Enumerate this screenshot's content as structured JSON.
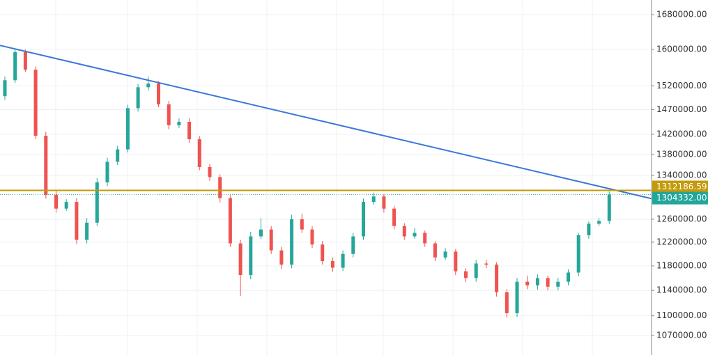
{
  "chart_data": {
    "type": "candlestick",
    "log_scale": true,
    "grid": true,
    "ylim": [
      1041000,
      1715000
    ],
    "yticks": [
      {
        "value": 1680000,
        "label": "1680000.00"
      },
      {
        "value": 1600000,
        "label": "1600000.00"
      },
      {
        "value": 1520000,
        "label": "1520000.00"
      },
      {
        "value": 1470000,
        "label": "1470000.00"
      },
      {
        "value": 1420000,
        "label": "1420000.00"
      },
      {
        "value": 1380000,
        "label": "1380000.00"
      },
      {
        "value": 1340000,
        "label": "1340000.00"
      },
      {
        "value": 1260000,
        "label": "1260000.00"
      },
      {
        "value": 1220000,
        "label": "1220000.00"
      },
      {
        "value": 1180000,
        "label": "1180000.00"
      },
      {
        "value": 1140000,
        "label": "1140000.00"
      },
      {
        "value": 1100000,
        "label": "1100000.00"
      },
      {
        "value": 1070000,
        "label": "1070000.00"
      }
    ],
    "up_color": "#26a69a",
    "down_color": "#ef5350",
    "open": [
      1498000,
      1532000,
      1594000,
      1555000,
      1417000,
      1304000,
      1279000,
      1291000,
      1224000,
      1254000,
      1327000,
      1366000,
      1390000,
      1473000,
      1517000,
      1525000,
      1481000,
      1438000,
      1445000,
      1410000,
      1356000,
      1337000,
      1298000,
      1218000,
      1165000,
      1230000,
      1242000,
      1206000,
      1182000,
      1260000,
      1242000,
      1216000,
      1188000,
      1177000,
      1200000,
      1230000,
      1291000,
      1301000,
      1279000,
      1248000,
      1230000,
      1236000,
      1218000,
      1194000,
      1204000,
      1171000,
      1160000,
      1184000,
      1182000,
      1137000,
      1104000,
      1154000,
      1148000,
      1160000,
      1146000,
      1154000,
      1169000,
      1232000,
      1252000,
      1257000
    ],
    "high": [
      1540000,
      1602000,
      1600000,
      1562000,
      1425000,
      1312000,
      1296000,
      1298000,
      1262000,
      1335000,
      1374000,
      1397000,
      1480000,
      1524000,
      1540000,
      1530000,
      1488000,
      1452000,
      1452000,
      1416000,
      1362000,
      1342000,
      1303000,
      1224000,
      1238000,
      1262000,
      1248000,
      1212000,
      1268000,
      1270000,
      1248000,
      1222000,
      1194000,
      1206000,
      1236000,
      1297000,
      1308000,
      1305000,
      1284000,
      1253000,
      1244000,
      1240000,
      1222000,
      1210000,
      1208000,
      1176000,
      1190000,
      1190000,
      1186000,
      1142000,
      1160000,
      1164000,
      1166000,
      1164000,
      1160000,
      1174000,
      1236000,
      1256000,
      1262000,
      1310000
    ],
    "low": [
      1490000,
      1526000,
      1550000,
      1410000,
      1297000,
      1272000,
      1275000,
      1217000,
      1218000,
      1248000,
      1320000,
      1360000,
      1384000,
      1466000,
      1510000,
      1475000,
      1430000,
      1432000,
      1403000,
      1350000,
      1330000,
      1290000,
      1212000,
      1131000,
      1158000,
      1225000,
      1200000,
      1175000,
      1176000,
      1236000,
      1210000,
      1182000,
      1170000,
      1172000,
      1194000,
      1224000,
      1286000,
      1272000,
      1242000,
      1224000,
      1226000,
      1212000,
      1188000,
      1190000,
      1165000,
      1153000,
      1154000,
      1176000,
      1130000,
      1097000,
      1098000,
      1142000,
      1141000,
      1140000,
      1140000,
      1148000,
      1163000,
      1226000,
      1248000,
      1252000
    ],
    "close": [
      1532000,
      1594000,
      1555000,
      1417000,
      1304000,
      1279000,
      1291000,
      1224000,
      1254000,
      1327000,
      1366000,
      1390000,
      1473000,
      1517000,
      1525000,
      1481000,
      1438000,
      1445000,
      1410000,
      1356000,
      1337000,
      1298000,
      1218000,
      1165000,
      1230000,
      1242000,
      1206000,
      1182000,
      1260000,
      1242000,
      1216000,
      1188000,
      1177000,
      1200000,
      1230000,
      1291000,
      1301000,
      1279000,
      1248000,
      1230000,
      1236000,
      1218000,
      1194000,
      1204000,
      1171000,
      1160000,
      1184000,
      1182000,
      1137000,
      1104000,
      1154000,
      1148000,
      1160000,
      1146000,
      1154000,
      1169000,
      1232000,
      1252000,
      1257000,
      1304332
    ],
    "trendline": {
      "values": [
        1609000,
        1297000
      ],
      "color": "#3b78d8"
    },
    "hlines": [
      {
        "value": 1312186.59,
        "label": "1312186.59",
        "color": "#c49a0a",
        "style": "solid"
      },
      {
        "value": 1304332,
        "label": "1304332.00",
        "color": "#22a69a",
        "style": "dotted"
      }
    ]
  }
}
